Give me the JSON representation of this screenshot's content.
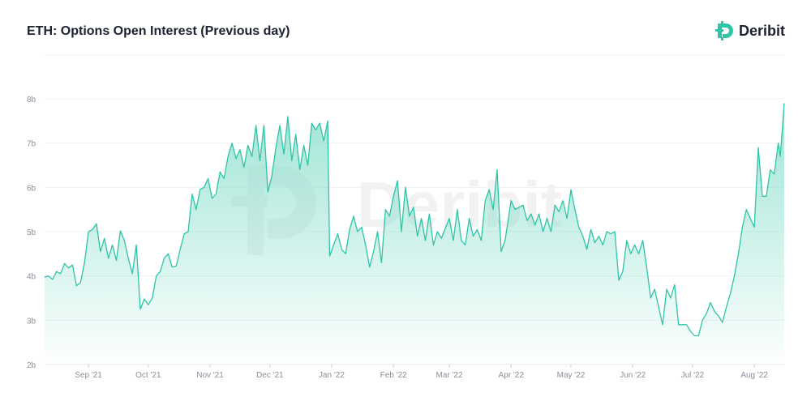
{
  "header": {
    "title": "ETH: Options Open Interest (Previous day)",
    "brand": "Deribit"
  },
  "colors": {
    "line": "#2ec4a7",
    "fill_top": "#7fdcc8",
    "grid": "#eef0f3",
    "axis_text": "#8a8f9a"
  },
  "chart_data": {
    "type": "area",
    "title": "ETH: Options Open Interest (Previous day)",
    "xlabel": "",
    "ylabel": "",
    "ylim": [
      2,
      8
    ],
    "yticks": [
      2,
      3,
      4,
      5,
      6,
      7,
      8
    ],
    "yticklabels": [
      "2b",
      "3b",
      "4b",
      "5b",
      "6b",
      "7b",
      "8b"
    ],
    "xlim": [
      "2021-08-10",
      "2022-08-16"
    ],
    "xticks": [
      {
        "date": "2021-09-01",
        "label": "Sep '21"
      },
      {
        "date": "2021-10-01",
        "label": "Oct '21"
      },
      {
        "date": "2021-11-01",
        "label": "Nov '21"
      },
      {
        "date": "2021-12-01",
        "label": "Dec '21"
      },
      {
        "date": "2022-01-01",
        "label": "Jan '22"
      },
      {
        "date": "2022-02-01",
        "label": "Feb '22"
      },
      {
        "date": "2022-03-01",
        "label": "Mar '22"
      },
      {
        "date": "2022-04-01",
        "label": "Apr '22"
      },
      {
        "date": "2022-05-01",
        "label": "May '22"
      },
      {
        "date": "2022-06-01",
        "label": "Jun '22"
      },
      {
        "date": "2022-07-01",
        "label": "Jul '22"
      },
      {
        "date": "2022-08-01",
        "label": "Aug '22"
      }
    ],
    "grid": true,
    "legend": "none",
    "series": [
      {
        "points": [
          [
            "2021-08-10",
            3.97
          ],
          [
            "2021-08-12",
            4.0
          ],
          [
            "2021-08-14",
            3.92
          ],
          [
            "2021-08-16",
            4.1
          ],
          [
            "2021-08-18",
            4.05
          ],
          [
            "2021-08-20",
            4.28
          ],
          [
            "2021-08-22",
            4.18
          ],
          [
            "2021-08-24",
            4.25
          ],
          [
            "2021-08-26",
            3.78
          ],
          [
            "2021-08-28",
            3.85
          ],
          [
            "2021-08-30",
            4.3
          ],
          [
            "2021-09-01",
            5.0
          ],
          [
            "2021-09-03",
            5.05
          ],
          [
            "2021-09-05",
            5.18
          ],
          [
            "2021-09-07",
            4.55
          ],
          [
            "2021-09-09",
            4.85
          ],
          [
            "2021-09-11",
            4.4
          ],
          [
            "2021-09-13",
            4.7
          ],
          [
            "2021-09-15",
            4.35
          ],
          [
            "2021-09-17",
            5.02
          ],
          [
            "2021-09-19",
            4.8
          ],
          [
            "2021-09-21",
            4.4
          ],
          [
            "2021-09-23",
            4.05
          ],
          [
            "2021-09-25",
            4.7
          ],
          [
            "2021-09-27",
            3.25
          ],
          [
            "2021-09-29",
            3.48
          ],
          [
            "2021-10-01",
            3.35
          ],
          [
            "2021-10-03",
            3.5
          ],
          [
            "2021-10-05",
            4.0
          ],
          [
            "2021-10-07",
            4.1
          ],
          [
            "2021-10-09",
            4.4
          ],
          [
            "2021-10-11",
            4.5
          ],
          [
            "2021-10-13",
            4.2
          ],
          [
            "2021-10-15",
            4.22
          ],
          [
            "2021-10-17",
            4.6
          ],
          [
            "2021-10-19",
            4.95
          ],
          [
            "2021-10-21",
            5.0
          ],
          [
            "2021-10-23",
            5.85
          ],
          [
            "2021-10-25",
            5.5
          ],
          [
            "2021-10-27",
            5.95
          ],
          [
            "2021-10-29",
            6.0
          ],
          [
            "2021-10-31",
            6.2
          ],
          [
            "2021-11-02",
            5.75
          ],
          [
            "2021-11-04",
            5.85
          ],
          [
            "2021-11-06",
            6.35
          ],
          [
            "2021-11-08",
            6.2
          ],
          [
            "2021-11-10",
            6.7
          ],
          [
            "2021-11-12",
            7.0
          ],
          [
            "2021-11-14",
            6.65
          ],
          [
            "2021-11-16",
            6.85
          ],
          [
            "2021-11-18",
            6.45
          ],
          [
            "2021-11-20",
            6.95
          ],
          [
            "2021-11-22",
            6.7
          ],
          [
            "2021-11-24",
            7.4
          ],
          [
            "2021-11-26",
            6.6
          ],
          [
            "2021-11-28",
            7.4
          ],
          [
            "2021-11-30",
            5.9
          ],
          [
            "2021-12-02",
            6.25
          ],
          [
            "2021-12-04",
            6.9
          ],
          [
            "2021-12-06",
            7.4
          ],
          [
            "2021-12-08",
            6.75
          ],
          [
            "2021-12-10",
            7.6
          ],
          [
            "2021-12-12",
            6.6
          ],
          [
            "2021-12-14",
            7.2
          ],
          [
            "2021-12-16",
            6.4
          ],
          [
            "2021-12-18",
            6.95
          ],
          [
            "2021-12-20",
            6.5
          ],
          [
            "2021-12-22",
            7.45
          ],
          [
            "2021-12-24",
            7.3
          ],
          [
            "2021-12-26",
            7.45
          ],
          [
            "2021-12-28",
            7.05
          ],
          [
            "2021-12-30",
            7.5
          ],
          [
            "2021-12-31",
            4.45
          ],
          [
            "2022-01-02",
            4.7
          ],
          [
            "2022-01-04",
            4.95
          ],
          [
            "2022-01-06",
            4.6
          ],
          [
            "2022-01-08",
            4.5
          ],
          [
            "2022-01-10",
            5.05
          ],
          [
            "2022-01-12",
            5.35
          ],
          [
            "2022-01-14",
            5.0
          ],
          [
            "2022-01-16",
            5.1
          ],
          [
            "2022-01-18",
            4.7
          ],
          [
            "2022-01-20",
            4.2
          ],
          [
            "2022-01-22",
            4.55
          ],
          [
            "2022-01-24",
            5.0
          ],
          [
            "2022-01-26",
            4.3
          ],
          [
            "2022-01-28",
            5.5
          ],
          [
            "2022-01-30",
            5.35
          ],
          [
            "2022-02-01",
            5.8
          ],
          [
            "2022-02-03",
            6.15
          ],
          [
            "2022-02-05",
            5.0
          ],
          [
            "2022-02-07",
            6.0
          ],
          [
            "2022-02-09",
            5.35
          ],
          [
            "2022-02-11",
            5.55
          ],
          [
            "2022-02-13",
            4.9
          ],
          [
            "2022-02-15",
            5.3
          ],
          [
            "2022-02-17",
            4.8
          ],
          [
            "2022-02-19",
            5.4
          ],
          [
            "2022-02-21",
            4.7
          ],
          [
            "2022-02-23",
            5.0
          ],
          [
            "2022-02-25",
            4.85
          ],
          [
            "2022-03-01",
            5.3
          ],
          [
            "2022-03-03",
            4.8
          ],
          [
            "2022-03-05",
            5.5
          ],
          [
            "2022-03-07",
            4.8
          ],
          [
            "2022-03-09",
            4.7
          ],
          [
            "2022-03-11",
            5.3
          ],
          [
            "2022-03-13",
            4.9
          ],
          [
            "2022-03-15",
            5.05
          ],
          [
            "2022-03-17",
            4.8
          ],
          [
            "2022-03-19",
            5.7
          ],
          [
            "2022-03-21",
            5.95
          ],
          [
            "2022-03-23",
            5.5
          ],
          [
            "2022-03-25",
            6.4
          ],
          [
            "2022-03-27",
            4.55
          ],
          [
            "2022-03-29",
            4.8
          ],
          [
            "2022-04-01",
            5.7
          ],
          [
            "2022-04-03",
            5.5
          ],
          [
            "2022-04-05",
            5.55
          ],
          [
            "2022-04-07",
            5.6
          ],
          [
            "2022-04-09",
            5.25
          ],
          [
            "2022-04-11",
            5.4
          ],
          [
            "2022-04-13",
            5.15
          ],
          [
            "2022-04-15",
            5.4
          ],
          [
            "2022-04-17",
            5.0
          ],
          [
            "2022-04-19",
            5.3
          ],
          [
            "2022-04-21",
            5.0
          ],
          [
            "2022-04-23",
            5.6
          ],
          [
            "2022-04-25",
            5.45
          ],
          [
            "2022-04-27",
            5.7
          ],
          [
            "2022-04-29",
            5.3
          ],
          [
            "2022-05-01",
            5.95
          ],
          [
            "2022-05-03",
            5.5
          ],
          [
            "2022-05-05",
            5.1
          ],
          [
            "2022-05-07",
            4.9
          ],
          [
            "2022-05-09",
            4.6
          ],
          [
            "2022-05-11",
            5.05
          ],
          [
            "2022-05-13",
            4.75
          ],
          [
            "2022-05-15",
            4.9
          ],
          [
            "2022-05-17",
            4.7
          ],
          [
            "2022-05-19",
            5.0
          ],
          [
            "2022-05-21",
            4.95
          ],
          [
            "2022-05-23",
            5.0
          ],
          [
            "2022-05-25",
            3.9
          ],
          [
            "2022-05-27",
            4.1
          ],
          [
            "2022-05-29",
            4.8
          ],
          [
            "2022-05-31",
            4.5
          ],
          [
            "2022-06-02",
            4.7
          ],
          [
            "2022-06-04",
            4.5
          ],
          [
            "2022-06-06",
            4.8
          ],
          [
            "2022-06-08",
            4.2
          ],
          [
            "2022-06-10",
            3.5
          ],
          [
            "2022-06-12",
            3.7
          ],
          [
            "2022-06-14",
            3.3
          ],
          [
            "2022-06-16",
            2.9
          ],
          [
            "2022-06-18",
            3.7
          ],
          [
            "2022-06-20",
            3.5
          ],
          [
            "2022-06-22",
            3.8
          ],
          [
            "2022-06-24",
            2.9
          ],
          [
            "2022-06-26",
            2.9
          ],
          [
            "2022-06-28",
            2.9
          ],
          [
            "2022-06-30",
            2.75
          ],
          [
            "2022-07-02",
            2.65
          ],
          [
            "2022-07-04",
            2.65
          ],
          [
            "2022-07-06",
            3.0
          ],
          [
            "2022-07-08",
            3.15
          ],
          [
            "2022-07-10",
            3.4
          ],
          [
            "2022-07-12",
            3.2
          ],
          [
            "2022-07-14",
            3.1
          ],
          [
            "2022-07-16",
            2.95
          ],
          [
            "2022-07-18",
            3.3
          ],
          [
            "2022-07-20",
            3.6
          ],
          [
            "2022-07-22",
            4.0
          ],
          [
            "2022-07-24",
            4.5
          ],
          [
            "2022-07-26",
            5.1
          ],
          [
            "2022-07-28",
            5.5
          ],
          [
            "2022-07-30",
            5.3
          ],
          [
            "2022-08-01",
            5.1
          ],
          [
            "2022-08-03",
            6.9
          ],
          [
            "2022-08-05",
            5.8
          ],
          [
            "2022-08-07",
            5.8
          ],
          [
            "2022-08-09",
            6.4
          ],
          [
            "2022-08-11",
            6.3
          ],
          [
            "2022-08-13",
            7.0
          ],
          [
            "2022-08-14",
            6.7
          ],
          [
            "2022-08-16",
            7.9
          ]
        ]
      }
    ]
  }
}
